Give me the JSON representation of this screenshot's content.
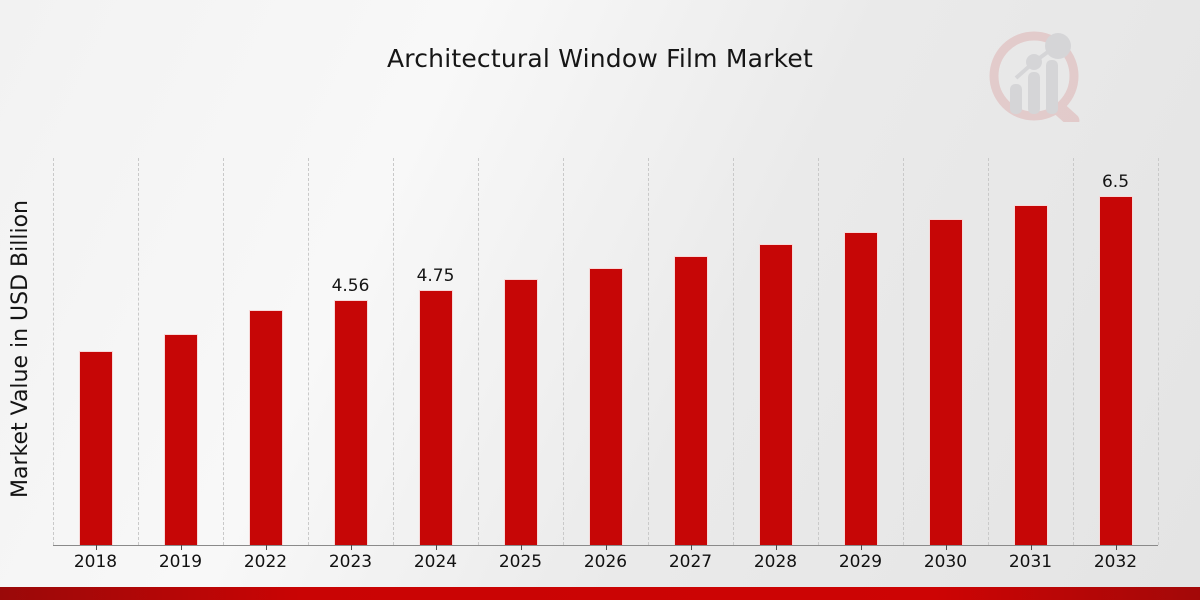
{
  "title": "Architectural Window Film Market",
  "ylabel": "Market Value in USD Billion",
  "colors": {
    "bar": "#c60606",
    "footer_band": "#c90404",
    "grid": "#c9c9c9",
    "title_text": "#161616",
    "background": "#ededed"
  },
  "watermark": {
    "icon": "magnifier-growth-chart-logo"
  },
  "chart_data": {
    "type": "bar",
    "title": "Architectural Window Film Market",
    "xlabel": "",
    "ylabel": "Market Value in USD Billion",
    "categories": [
      "2018",
      "2019",
      "2022",
      "2023",
      "2024",
      "2025",
      "2026",
      "2027",
      "2028",
      "2029",
      "2030",
      "2031",
      "2032"
    ],
    "values": [
      3.61,
      3.93,
      4.38,
      4.56,
      4.75,
      4.95,
      5.16,
      5.37,
      5.6,
      5.83,
      6.07,
      6.32,
      6.5
    ],
    "point_labels": {
      "2023": "4.56",
      "2024": "4.75",
      "2032": "6.5"
    },
    "ylim": [
      0,
      7.2
    ],
    "grid": "vertical-dashed",
    "legend": "none",
    "bar_color": "#c60606"
  }
}
